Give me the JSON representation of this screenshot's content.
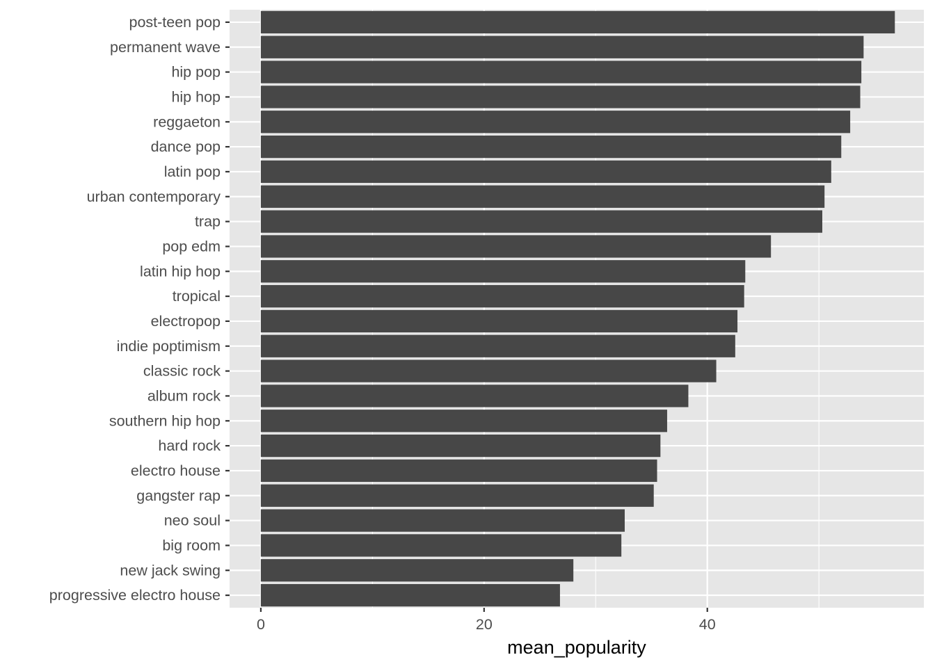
{
  "chart_data": {
    "type": "bar",
    "orientation": "horizontal",
    "xlabel": "mean_popularity",
    "ylabel": "",
    "xlim": [
      -2.8,
      59.4
    ],
    "x_ticks": [
      0,
      20,
      40
    ],
    "x_tick_labels": [
      "0",
      "20",
      "40"
    ],
    "grid": true,
    "legend": "none",
    "colors": {
      "bar": "#474747",
      "panel_background": "#e6e6e6",
      "grid_major": "#ffffff",
      "axis_text": "#4d4d4d",
      "axis_title": "#000000"
    },
    "categories": [
      "post-teen pop",
      "permanent wave",
      "hip pop",
      "hip hop",
      "reggaeton",
      "dance pop",
      "latin pop",
      "urban contemporary",
      "trap",
      "pop edm",
      "latin hip hop",
      "tropical",
      "electropop",
      "indie poptimism",
      "classic rock",
      "album rock",
      "southern hip hop",
      "hard rock",
      "electro house",
      "gangster rap",
      "neo soul",
      "big room",
      "new jack swing",
      "progressive electro house"
    ],
    "values": [
      56.8,
      54.0,
      53.8,
      53.7,
      52.8,
      52.0,
      51.1,
      50.5,
      50.3,
      45.7,
      43.4,
      43.3,
      42.7,
      42.5,
      40.8,
      38.3,
      36.4,
      35.8,
      35.5,
      35.2,
      32.6,
      32.3,
      28.0,
      26.8
    ]
  }
}
